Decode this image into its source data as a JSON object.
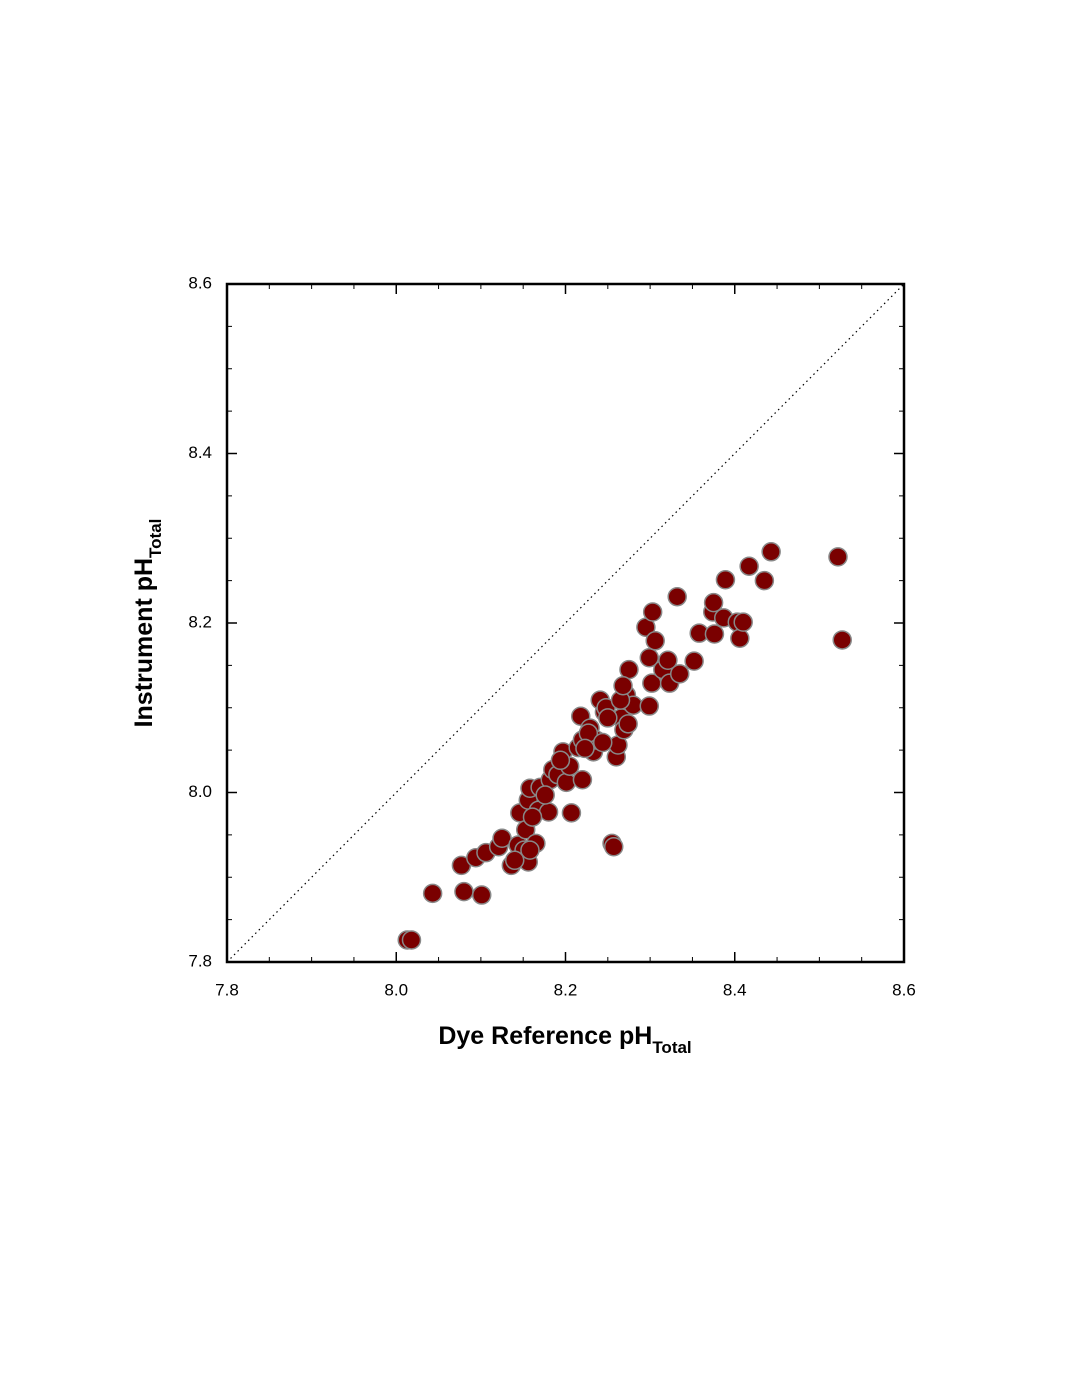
{
  "chart_data": {
    "type": "scatter",
    "xlabel": {
      "text": "Dye Reference pH",
      "subscript": "Total"
    },
    "ylabel": {
      "text": "Instrument pH",
      "subscript": "Total"
    },
    "xlim": [
      7.8,
      8.6
    ],
    "ylim": [
      7.8,
      8.6
    ],
    "xticks": [
      7.8,
      {
        "value": 8,
        "label": "8.0"
      },
      8.2,
      8.4,
      8.6
    ],
    "yticks": [
      7.8,
      {
        "value": 8,
        "label": "8.0"
      },
      8.2,
      8.4,
      8.6
    ],
    "minor_ticks": [
      7.85,
      7.9,
      7.95,
      8.05,
      8.1,
      8.15,
      8.25,
      8.3,
      8.35,
      8.45,
      8.5,
      8.55
    ],
    "identity_line": true,
    "color": "#7a0000",
    "x": [
      8.013,
      8.018,
      8.043,
      8.077,
      8.08,
      8.094,
      8.101,
      8.106,
      8.121,
      8.125,
      8.136,
      8.144,
      8.146,
      8.151,
      8.156,
      8.153,
      8.156,
      8.158,
      8.165,
      8.168,
      8.17,
      8.18,
      8.182,
      8.185,
      8.191,
      8.197,
      8.201,
      8.205,
      8.207,
      8.215,
      8.22,
      8.22,
      8.218,
      8.229,
      8.233,
      8.236,
      8.241,
      8.246,
      8.248,
      8.255,
      8.257,
      8.26,
      8.262,
      8.266,
      8.269,
      8.272,
      8.274,
      8.275,
      8.28,
      8.299,
      8.295,
      8.299,
      8.302,
      8.303,
      8.306,
      8.315,
      8.321,
      8.323,
      8.332,
      8.335,
      8.352,
      8.358,
      8.374,
      8.375,
      8.376,
      8.387,
      8.389,
      8.403,
      8.406,
      8.41,
      8.417,
      8.435,
      8.443,
      8.522,
      8.527,
      8.227,
      8.244,
      8.25,
      8.265,
      8.268,
      8.223,
      8.194,
      8.176,
      8.161,
      8.158,
      8.14
    ],
    "y": [
      7.826,
      7.826,
      7.881,
      7.914,
      7.883,
      7.923,
      7.879,
      7.929,
      7.936,
      7.946,
      7.914,
      7.938,
      7.976,
      7.932,
      7.918,
      7.956,
      7.991,
      8.005,
      7.94,
      7.979,
      8.006,
      7.977,
      8.015,
      8.027,
      8.021,
      8.048,
      8.012,
      8.031,
      7.976,
      8.053,
      8.062,
      8.015,
      8.09,
      8.076,
      8.048,
      8.062,
      8.109,
      8.095,
      8.1,
      7.94,
      7.936,
      8.042,
      8.056,
      8.088,
      8.074,
      8.115,
      8.081,
      8.145,
      8.103,
      8.102,
      8.195,
      8.159,
      8.129,
      8.213,
      8.179,
      8.145,
      8.156,
      8.129,
      8.231,
      8.14,
      8.155,
      8.188,
      8.213,
      8.224,
      8.187,
      8.206,
      8.251,
      8.201,
      8.182,
      8.201,
      8.267,
      8.25,
      8.284,
      8.278,
      8.18,
      8.07,
      8.059,
      8.088,
      8.109,
      8.126,
      8.052,
      8.038,
      7.997,
      7.971,
      7.932,
      7.92
    ]
  }
}
